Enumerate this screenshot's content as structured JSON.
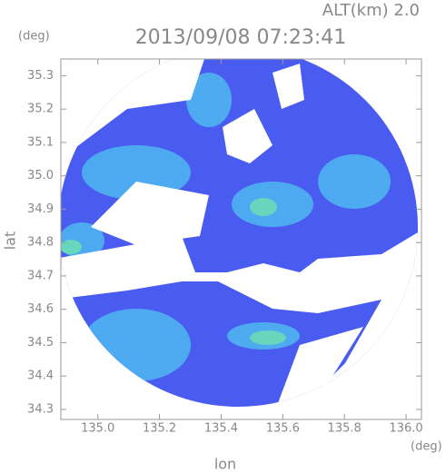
{
  "chart_data": {
    "type": "radar-map",
    "header": "ALT(km) 2.0",
    "title": "2013/09/08 07:23:41",
    "y_unit": "(deg)",
    "x_unit": "(deg)",
    "xlabel": "lon",
    "ylabel": "lat",
    "xlim": [
      134.88,
      136.05
    ],
    "ylim": [
      34.27,
      35.35
    ],
    "xticks": [
      {
        "value": 135,
        "label": "135.0"
      },
      135.2,
      135.4,
      135.6,
      135.8,
      {
        "value": 136,
        "label": "136.0"
      }
    ],
    "yticks": [
      34.3,
      34.4,
      34.5,
      34.6,
      34.7,
      34.8,
      34.9,
      {
        "value": 35,
        "label": "35.0"
      },
      35.1,
      35.2,
      35.3
    ]
  }
}
